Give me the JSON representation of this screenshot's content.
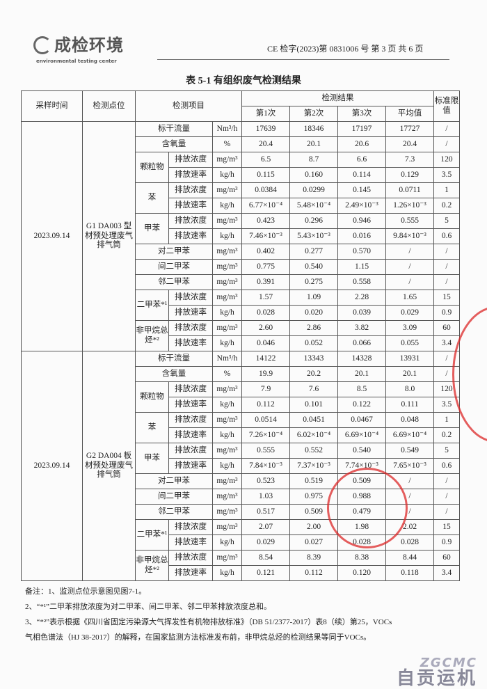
{
  "header": {
    "logo_cn": "成检环境",
    "logo_en": "environmental testing center",
    "doc_no": "CE 检字(2023)第 0831006 号  第 3 页 共 6 页"
  },
  "title": "表 5-1  有组织废气检测结果",
  "columns": {
    "time": "采样时间",
    "site": "检测点位",
    "item": "检测项目",
    "results": "检测结果",
    "runs": [
      "第1次",
      "第2次",
      "第3次",
      "平均值"
    ],
    "limit": "标准限值"
  },
  "groups": [
    {
      "time": "2023.09.14",
      "site": "G1 DA003 型材预处理废气排气筒",
      "rows": [
        {
          "item": "标干流量",
          "unit": "Nm³/h",
          "values": [
            "17639",
            "18346",
            "17197",
            "17727"
          ],
          "limit": "/"
        },
        {
          "item": "含氧量",
          "unit": "%",
          "values": [
            "20.4",
            "20.1",
            "20.6",
            "20.4"
          ],
          "limit": "/"
        },
        {
          "item": "颗粒物",
          "sub": [
            {
              "name": "排放浓度",
              "unit": "mg/m³",
              "values": [
                "6.5",
                "8.7",
                "6.6",
                "7.3"
              ],
              "limit": "120"
            },
            {
              "name": "排放速率",
              "unit": "kg/h",
              "values": [
                "0.115",
                "0.160",
                "0.114",
                "0.129"
              ],
              "limit": "3.5"
            }
          ]
        },
        {
          "item": "苯",
          "sub": [
            {
              "name": "排放浓度",
              "unit": "mg/m³",
              "values": [
                "0.0384",
                "0.0299",
                "0.145",
                "0.0711"
              ],
              "limit": "1"
            },
            {
              "name": "排放速率",
              "unit": "kg/h",
              "values": [
                "6.77×10⁻⁴",
                "5.48×10⁻⁴",
                "2.49×10⁻³",
                "1.26×10⁻³"
              ],
              "limit": "0.2"
            }
          ]
        },
        {
          "item": "甲苯",
          "sub": [
            {
              "name": "排放浓度",
              "unit": "mg/m³",
              "values": [
                "0.423",
                "0.296",
                "0.946",
                "0.555"
              ],
              "limit": "5"
            },
            {
              "name": "排放速率",
              "unit": "kg/h",
              "values": [
                "7.46×10⁻³",
                "5.43×10⁻³",
                "0.016",
                "9.84×10⁻³"
              ],
              "limit": "0.6"
            }
          ]
        },
        {
          "item": "对二甲苯",
          "unit": "mg/m³",
          "values": [
            "0.402",
            "0.277",
            "0.570",
            "/"
          ],
          "limit": "/"
        },
        {
          "item": "间二甲苯",
          "unit": "mg/m³",
          "values": [
            "0.775",
            "0.540",
            "1.15",
            "/"
          ],
          "limit": "/"
        },
        {
          "item": "邻二甲苯",
          "unit": "mg/m³",
          "values": [
            "0.391",
            "0.275",
            "0.558",
            "/"
          ],
          "limit": "/"
        },
        {
          "item": "二甲苯*¹",
          "sub": [
            {
              "name": "排放浓度",
              "unit": "mg/m³",
              "values": [
                "1.57",
                "1.09",
                "2.28",
                "1.65"
              ],
              "limit": "15"
            },
            {
              "name": "排放速率",
              "unit": "kg/h",
              "values": [
                "0.028",
                "0.020",
                "0.039",
                "0.029"
              ],
              "limit": "0.9"
            }
          ]
        },
        {
          "item": "非甲烷总烃*²",
          "sub": [
            {
              "name": "排放浓度",
              "unit": "mg/m³",
              "values": [
                "2.60",
                "2.86",
                "3.82",
                "3.09"
              ],
              "limit": "60"
            },
            {
              "name": "排放速率",
              "unit": "kg/h",
              "values": [
                "0.046",
                "0.052",
                "0.066",
                "0.055"
              ],
              "limit": "3.4"
            }
          ]
        }
      ]
    },
    {
      "time": "2023.09.14",
      "site": "G2 DA004 板材预处理废气排气筒",
      "rows": [
        {
          "item": "标干流量",
          "unit": "Nm³/h",
          "values": [
            "14122",
            "13343",
            "14328",
            "13931"
          ],
          "limit": "/"
        },
        {
          "item": "含氧量",
          "unit": "%",
          "values": [
            "19.9",
            "20.2",
            "20.1",
            "20.1"
          ],
          "limit": "/"
        },
        {
          "item": "颗粒物",
          "sub": [
            {
              "name": "排放浓度",
              "unit": "mg/m³",
              "values": [
                "7.9",
                "7.6",
                "8.5",
                "8.0"
              ],
              "limit": "120"
            },
            {
              "name": "排放速率",
              "unit": "kg/h",
              "values": [
                "0.112",
                "0.101",
                "0.122",
                "0.111"
              ],
              "limit": "3.5"
            }
          ]
        },
        {
          "item": "苯",
          "sub": [
            {
              "name": "排放浓度",
              "unit": "mg/m³",
              "values": [
                "0.0514",
                "0.0451",
                "0.0467",
                "0.048"
              ],
              "limit": "1"
            },
            {
              "name": "排放速率",
              "unit": "kg/h",
              "values": [
                "7.26×10⁻⁴",
                "6.02×10⁻⁴",
                "6.69×10⁻⁴",
                "6.69×10⁻⁴"
              ],
              "limit": "0.2"
            }
          ]
        },
        {
          "item": "甲苯",
          "sub": [
            {
              "name": "排放浓度",
              "unit": "mg/m³",
              "values": [
                "0.555",
                "0.552",
                "0.540",
                "0.549"
              ],
              "limit": "5"
            },
            {
              "name": "排放速率",
              "unit": "kg/h",
              "values": [
                "7.84×10⁻³",
                "7.37×10⁻³",
                "7.74×10⁻³",
                "7.65×10⁻³"
              ],
              "limit": "0.6"
            }
          ]
        },
        {
          "item": "对二甲苯",
          "unit": "mg/m³",
          "values": [
            "0.523",
            "0.519",
            "0.509",
            "/"
          ],
          "limit": "/"
        },
        {
          "item": "间二甲苯",
          "unit": "mg/m³",
          "values": [
            "1.03",
            "0.975",
            "0.988",
            "/"
          ],
          "limit": "/"
        },
        {
          "item": "邻二甲苯",
          "unit": "mg/m³",
          "values": [
            "0.517",
            "0.509",
            "0.479",
            "/"
          ],
          "limit": "/"
        },
        {
          "item": "二甲苯*¹",
          "sub": [
            {
              "name": "排放浓度",
              "unit": "mg/m³",
              "values": [
                "2.07",
                "2.00",
                "1.98",
                "2.02"
              ],
              "limit": "15"
            },
            {
              "name": "排放速率",
              "unit": "kg/h",
              "values": [
                "0.029",
                "0.027",
                "0.028",
                "0.028"
              ],
              "limit": "0.9"
            }
          ]
        },
        {
          "item": "非甲烷总烃*²",
          "sub": [
            {
              "name": "排放浓度",
              "unit": "mg/m³",
              "values": [
                "8.54",
                "8.39",
                "8.38",
                "8.44"
              ],
              "limit": "60"
            },
            {
              "name": "排放速率",
              "unit": "kg/h",
              "values": [
                "0.121",
                "0.112",
                "0.120",
                "0.118"
              ],
              "limit": "3.4"
            }
          ]
        }
      ]
    }
  ],
  "notes": [
    "备注：1、监测点位示意图见图7-1。",
    "2、“*¹”二甲苯排放浓度为对二甲苯、间二甲苯、邻二甲苯排放浓度总和。",
    "3、“*²”表示根据《四川省固定污染源大气挥发性有机物排放标准》（DB 51/2377-2017）表8（续）第25，VOCs",
    "气相色谱法（HJ 38-2017）的解释，在国家监测方法标准发布前，非甲烷总烃的检测结果等同于VOCs。"
  ],
  "footer_logo": {
    "en": "ZGCMC",
    "cn": "自贡运机"
  },
  "stamp_color": "#dc2828"
}
